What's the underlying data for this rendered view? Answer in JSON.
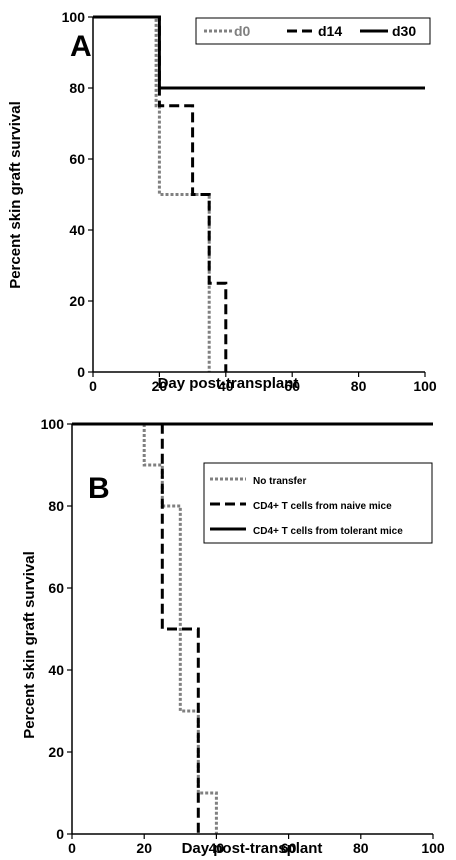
{
  "chart_data": [
    {
      "type": "line",
      "step": true,
      "panel_label": "A",
      "xlabel": "Day post-transplant",
      "ylabel": "Percent skin graft survival",
      "xlim": [
        0,
        100
      ],
      "ylim": [
        0,
        100
      ],
      "xticks": [
        0,
        20,
        40,
        60,
        80,
        100
      ],
      "yticks": [
        0,
        20,
        40,
        60,
        80,
        100
      ],
      "legend": {
        "placement": "top-right",
        "orientation": "horizontal"
      },
      "series": [
        {
          "name": "d0",
          "style": "dotted",
          "color": "#808080",
          "x": [
            0,
            19,
            19,
            20,
            20,
            35,
            35
          ],
          "y": [
            100,
            100,
            75,
            75,
            50,
            50,
            0
          ]
        },
        {
          "name": "d14",
          "style": "dashed",
          "color": "#000000",
          "x": [
            0,
            20,
            20,
            30,
            30,
            35,
            35,
            40,
            40
          ],
          "y": [
            100,
            100,
            75,
            75,
            50,
            50,
            25,
            25,
            0
          ]
        },
        {
          "name": "d30",
          "style": "solid",
          "color": "#000000",
          "x": [
            0,
            20,
            20,
            100
          ],
          "y": [
            100,
            100,
            80,
            80
          ]
        }
      ]
    },
    {
      "type": "line",
      "step": true,
      "panel_label": "B",
      "xlabel": "Day post-transplant",
      "ylabel": "Percent skin graft survival",
      "xlim": [
        0,
        100
      ],
      "ylim": [
        0,
        100
      ],
      "xticks": [
        0,
        20,
        40,
        60,
        80,
        100
      ],
      "yticks": [
        0,
        20,
        40,
        60,
        80,
        100
      ],
      "legend": {
        "placement": "top-right",
        "orientation": "vertical"
      },
      "series": [
        {
          "name": "No transfer",
          "style": "dotted",
          "color": "#808080",
          "x": [
            20,
            20,
            25,
            25,
            30,
            30,
            35,
            35,
            40,
            40
          ],
          "y": [
            100,
            90,
            90,
            80,
            80,
            30,
            30,
            10,
            10,
            0
          ]
        },
        {
          "name": "CD4+ T cells from naive mice",
          "style": "dashed",
          "color": "#000000",
          "x": [
            0,
            25,
            25,
            35,
            35
          ],
          "y": [
            100,
            100,
            50,
            50,
            0
          ]
        },
        {
          "name": "CD4+ T cells from tolerant mice",
          "style": "solid",
          "color": "#000000",
          "x": [
            0,
            100
          ],
          "y": [
            100,
            100
          ]
        }
      ]
    }
  ]
}
